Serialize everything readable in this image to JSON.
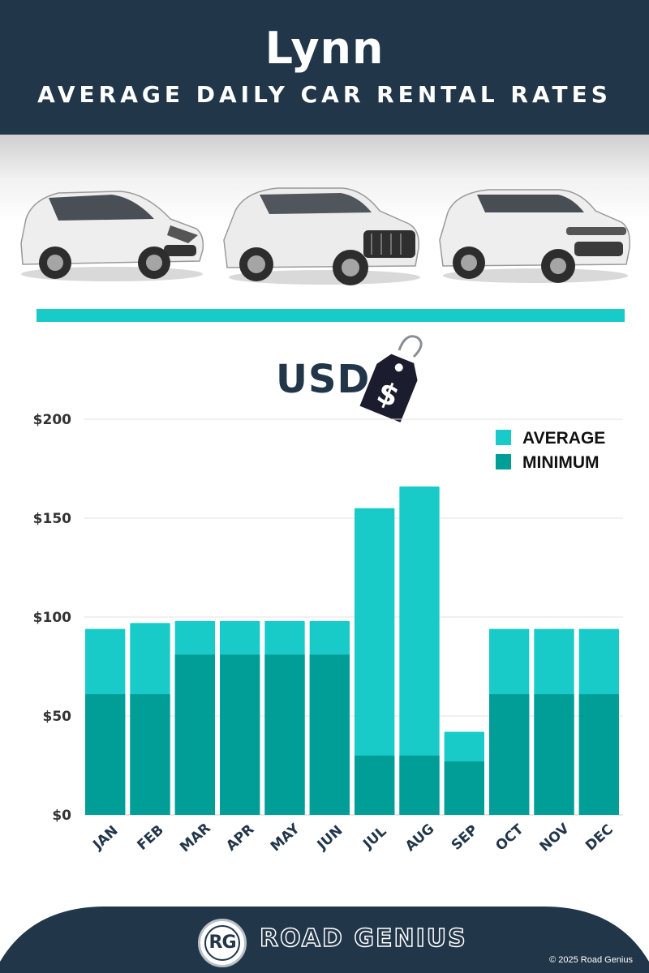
{
  "header": {
    "city": "Lynn",
    "subtitle": "AVERAGE DAILY CAR RENTAL RATES"
  },
  "currency": {
    "label": "USD",
    "tag_symbol": "$"
  },
  "colors": {
    "header_bg": "#22364a",
    "average": "#19cbc8",
    "minimum": "#009e97",
    "divider": "#19cbc8"
  },
  "chart_data": {
    "type": "bar",
    "stacked": "overlay",
    "categories": [
      "JAN",
      "FEB",
      "MAR",
      "APR",
      "MAY",
      "JUN",
      "JUL",
      "AUG",
      "SEP",
      "OCT",
      "NOV",
      "DEC"
    ],
    "series": [
      {
        "name": "AVERAGE",
        "values": [
          94,
          97,
          98,
          98,
          98,
          98,
          155,
          166,
          42,
          94,
          94,
          94
        ]
      },
      {
        "name": "MINIMUM",
        "values": [
          61,
          61,
          81,
          81,
          81,
          81,
          30,
          30,
          27,
          61,
          61,
          61
        ]
      }
    ],
    "y_ticks": [
      "$0",
      "$50",
      "$100",
      "$150",
      "$200"
    ],
    "y_tick_values": [
      0,
      50,
      100,
      150,
      200
    ],
    "ylim": [
      0,
      200
    ],
    "grid": true,
    "legend_position": "top-right"
  },
  "footer": {
    "logo_text": "RG",
    "brand": "ROAD GENIUS",
    "copyright": "© 2025 Road Genius"
  }
}
